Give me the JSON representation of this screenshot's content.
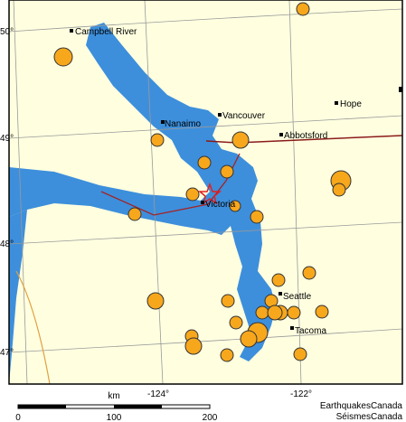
{
  "map": {
    "lat_labels": [
      "50°",
      "49°",
      "48°",
      "47°"
    ],
    "lon_labels": [
      "-124°",
      "-122°"
    ],
    "cities": [
      "Campbell River",
      "Nanaimo",
      "Vancouver",
      "Hope",
      "Abbotsford",
      "Victoria",
      "Seattle",
      "Tacoma"
    ],
    "scale": {
      "unit": "km",
      "labels": [
        "0",
        "100",
        "200"
      ]
    },
    "credits": [
      "EarthquakesCanada",
      "SéismesCanada"
    ]
  }
}
